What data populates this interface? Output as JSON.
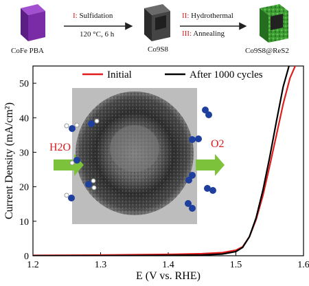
{
  "schematic": {
    "materials": [
      "CoFe PBA",
      "Co9S8",
      "Co9S8@ReS2"
    ],
    "step1": {
      "numeral": "I",
      "text": "Sulfidation"
    },
    "step1_conditions": "120 °C, 6 h",
    "step2": {
      "numeral": "II",
      "text": "Hydrothermal"
    },
    "step3": {
      "numeral": "III",
      "text": "Annealing"
    },
    "inset_left_label": "H2O",
    "inset_right_label": "O2"
  },
  "colors": {
    "initial": "#e01c1c",
    "after": "#000000",
    "step_numeral": "#d81b1b",
    "cube_pba": "#7a2ca6",
    "cube_sulfide": "#3a3a3a",
    "cube_coated": "#2f8f2a",
    "arrow_green": "#7cc23a",
    "molecule_blue": "#1f3f9e"
  },
  "chart_data": {
    "type": "line",
    "xlabel": "E (V vs. RHE)",
    "ylabel": "Current Density (mA/cm²)",
    "xlim": [
      1.2,
      1.6
    ],
    "ylim": [
      0,
      55
    ],
    "xticks": [
      1.2,
      1.3,
      1.4,
      1.5,
      1.6
    ],
    "yticks": [
      0,
      10,
      20,
      30,
      40,
      50
    ],
    "legend_position": "top",
    "series": [
      {
        "name": "Initial",
        "x": [
          1.2,
          1.3,
          1.4,
          1.45,
          1.48,
          1.5,
          1.51,
          1.52,
          1.53,
          1.54,
          1.55,
          1.56,
          1.57,
          1.58,
          1.59
        ],
        "y": [
          0.1,
          0.2,
          0.4,
          0.6,
          0.9,
          1.6,
          2.6,
          5.5,
          10.5,
          17.5,
          26.0,
          35.0,
          44.0,
          51.5,
          56.0
        ]
      },
      {
        "name": "After 1000 cycles",
        "x": [
          1.2,
          1.3,
          1.4,
          1.45,
          1.48,
          1.5,
          1.51,
          1.52,
          1.53,
          1.54,
          1.55,
          1.56,
          1.57,
          1.58
        ],
        "y": [
          0.0,
          0.0,
          0.1,
          0.2,
          0.5,
          1.2,
          2.4,
          5.5,
          11.0,
          19.0,
          28.5,
          39.0,
          49.0,
          56.0
        ]
      }
    ]
  }
}
